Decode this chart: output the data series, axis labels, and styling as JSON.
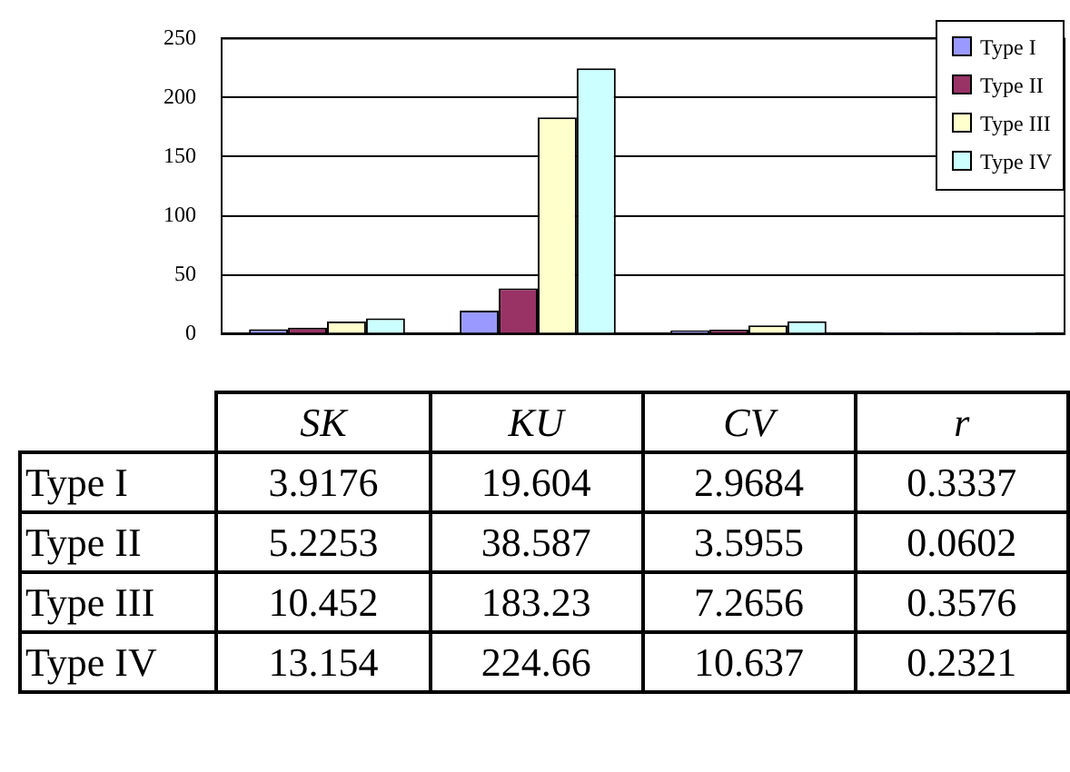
{
  "chart_data": {
    "type": "bar",
    "categories": [
      "SK",
      "KU",
      "CV",
      "r"
    ],
    "series": [
      {
        "name": "Type I",
        "color": "#9999ff",
        "values": [
          3.9176,
          19.604,
          2.9684,
          0.3337
        ]
      },
      {
        "name": "Type II",
        "color": "#993366",
        "values": [
          5.2253,
          38.587,
          3.5955,
          0.0602
        ]
      },
      {
        "name": "Type III",
        "color": "#ffffcc",
        "values": [
          10.452,
          183.23,
          7.2656,
          0.3576
        ]
      },
      {
        "name": "Type IV",
        "color": "#ccffff",
        "values": [
          13.154,
          224.66,
          10.637,
          0.2321
        ]
      }
    ],
    "ylim": [
      0,
      250
    ],
    "yticks": [
      0,
      50,
      100,
      150,
      200,
      250
    ],
    "grid": "y",
    "legend": "top right",
    "tick_labels": "y",
    "data_labels": true
  }
}
